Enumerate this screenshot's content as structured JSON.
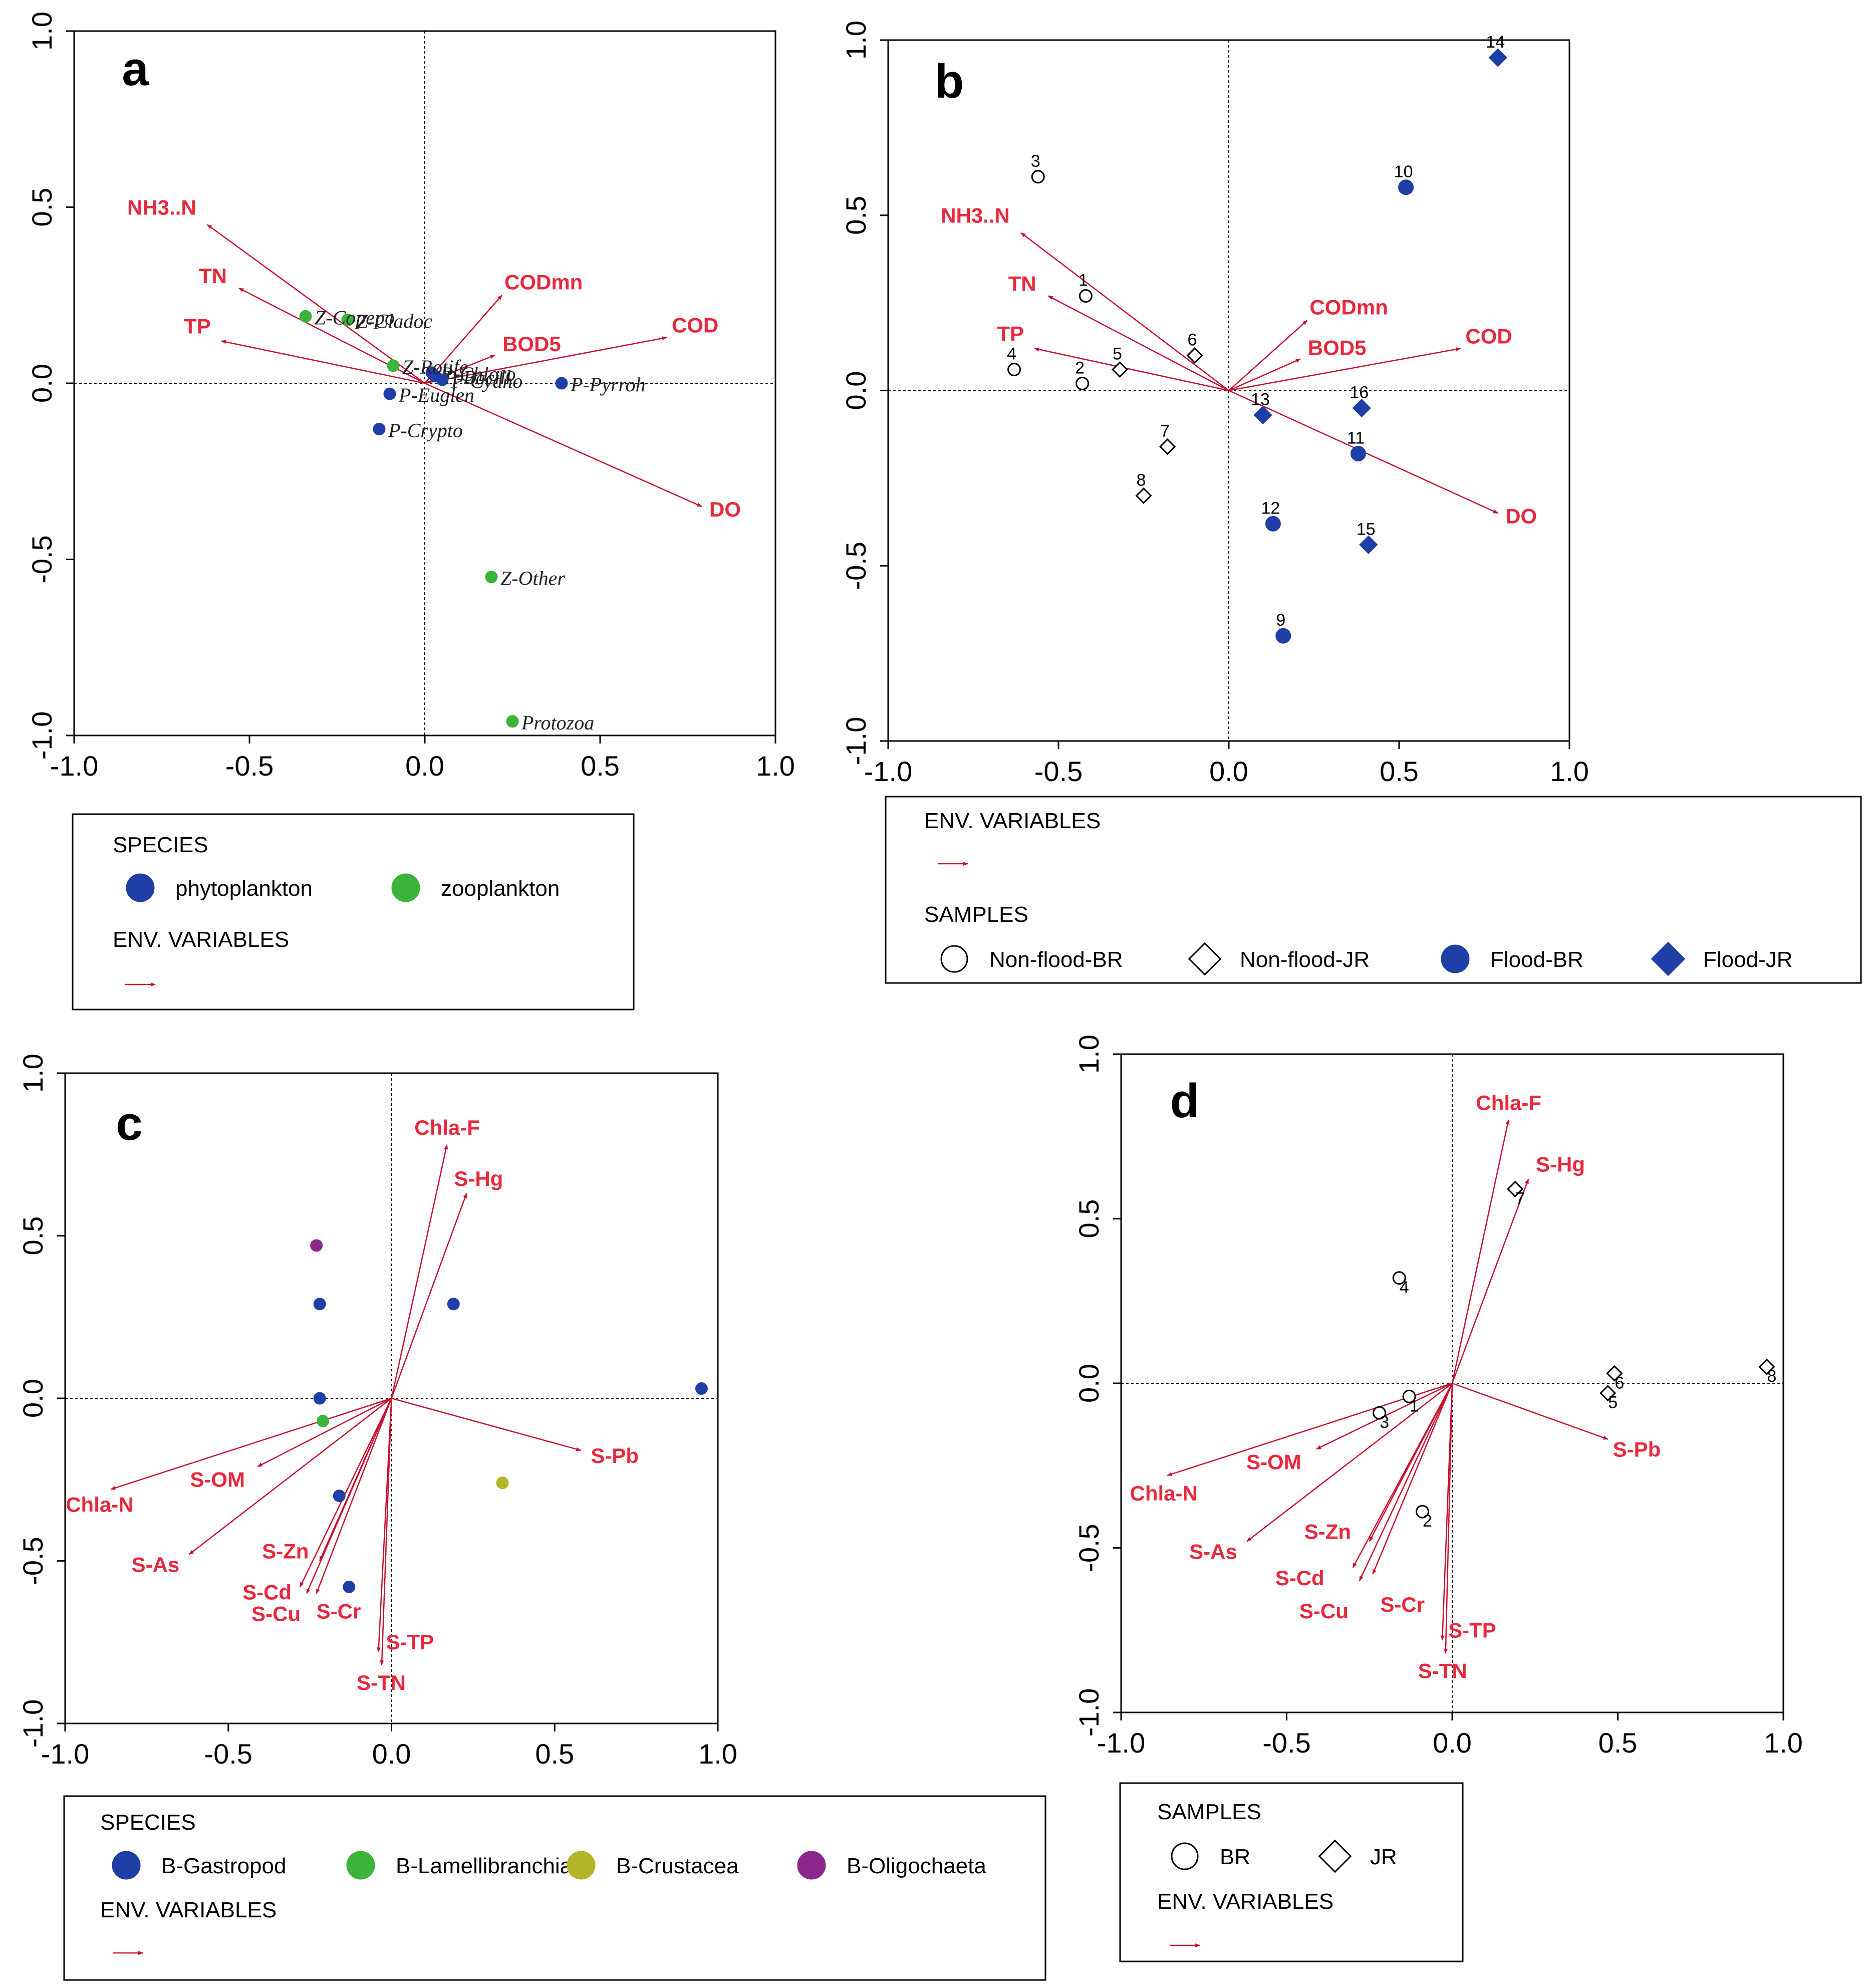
{
  "colors": {
    "arrow": "#c8102e",
    "envText": "#e8283c",
    "blue": "#1f3fa6",
    "green": "#3cb43c",
    "olive": "#b4b428",
    "purple": "#8c288c",
    "axis": "#000000"
  },
  "chart_data": [
    {
      "type": "scatter",
      "panel": "a",
      "xlim": [
        -1.0,
        1.0
      ],
      "ylim": [
        -1.0,
        1.0
      ],
      "xticks": [
        "-1.0",
        "-0.5",
        "0.0",
        "0.5",
        "1.0"
      ],
      "yticks": [
        "-1.0",
        "-0.5",
        "0.0",
        "0.5",
        "1.0"
      ],
      "env_variables": [
        {
          "name": "NH3..N",
          "x": -0.62,
          "y": 0.45
        },
        {
          "name": "TN",
          "x": -0.53,
          "y": 0.27
        },
        {
          "name": "TP",
          "x": -0.58,
          "y": 0.12
        },
        {
          "name": "CODmn",
          "x": 0.22,
          "y": 0.25
        },
        {
          "name": "BOD5",
          "x": 0.2,
          "y": 0.08
        },
        {
          "name": "COD",
          "x": 0.69,
          "y": 0.13
        },
        {
          "name": "DO",
          "x": 0.79,
          "y": -0.35
        }
      ],
      "series": [
        {
          "name": "phytoplankton",
          "color": "blue",
          "points": [
            {
              "label": "P-Chloro",
              "x": 0.02,
              "y": 0.03
            },
            {
              "label": "P-Bacill",
              "x": 0.03,
              "y": 0.02
            },
            {
              "label": "P-Cyano",
              "x": 0.05,
              "y": 0.01
            },
            {
              "label": "P-Euglen",
              "x": -0.1,
              "y": -0.03
            },
            {
              "label": "P-Pyrroh",
              "x": 0.39,
              "y": 0.0
            },
            {
              "label": "P-Crypto",
              "x": -0.13,
              "y": -0.13
            }
          ]
        },
        {
          "name": "zooplankton",
          "color": "green",
          "points": [
            {
              "label": "Z-Cladoc",
              "x": -0.22,
              "y": 0.18
            },
            {
              "label": "Z-Copepo",
              "x": -0.34,
              "y": 0.19
            },
            {
              "label": "Z-Rotife",
              "x": -0.09,
              "y": 0.05
            },
            {
              "label": "Z-Other",
              "x": 0.19,
              "y": -0.55
            },
            {
              "label": "Protozoa",
              "x": 0.25,
              "y": -0.96
            }
          ]
        }
      ],
      "legend": {
        "sections": [
          {
            "title": "SPECIES",
            "items": [
              {
                "label": "phytoplankton",
                "marker": "circle-filled",
                "color": "blue"
              },
              {
                "label": "zooplankton",
                "marker": "circle-filled",
                "color": "green"
              }
            ]
          },
          {
            "title": "ENV. VARIABLES",
            "items": [
              {
                "label": "",
                "marker": "arrow",
                "color": "arrow"
              }
            ]
          }
        ]
      }
    },
    {
      "type": "scatter",
      "panel": "b",
      "xlim": [
        -1.0,
        1.0
      ],
      "ylim": [
        -1.0,
        1.0
      ],
      "xticks": [
        "-1.0",
        "-0.5",
        "0.0",
        "0.5",
        "1.0"
      ],
      "yticks": [
        "-1.0",
        "-0.5",
        "0.0",
        "0.5",
        "1.0"
      ],
      "env_variables": [
        {
          "name": "NH3..N",
          "x": -0.61,
          "y": 0.45
        },
        {
          "name": "TN",
          "x": -0.53,
          "y": 0.27
        },
        {
          "name": "TP",
          "x": -0.57,
          "y": 0.12
        },
        {
          "name": "CODmn",
          "x": 0.23,
          "y": 0.2
        },
        {
          "name": "BOD5",
          "x": 0.21,
          "y": 0.09
        },
        {
          "name": "COD",
          "x": 0.68,
          "y": 0.12
        },
        {
          "name": "DO",
          "x": 0.79,
          "y": -0.35
        }
      ],
      "series": [
        {
          "name": "Non-flood-BR",
          "marker": "circle-open",
          "points": [
            {
              "label": "1",
              "x": -0.42,
              "y": 0.27
            },
            {
              "label": "2",
              "x": -0.43,
              "y": 0.02
            },
            {
              "label": "3",
              "x": -0.56,
              "y": 0.61
            },
            {
              "label": "4",
              "x": -0.63,
              "y": 0.06
            }
          ]
        },
        {
          "name": "Non-flood-JR",
          "marker": "diamond-open",
          "points": [
            {
              "label": "5",
              "x": -0.32,
              "y": 0.06
            },
            {
              "label": "6",
              "x": -0.1,
              "y": 0.1
            },
            {
              "label": "7",
              "x": -0.18,
              "y": -0.16
            },
            {
              "label": "8",
              "x": -0.25,
              "y": -0.3
            }
          ]
        },
        {
          "name": "Flood-BR",
          "marker": "circle-filled",
          "points": [
            {
              "label": "9",
              "x": 0.16,
              "y": -0.7
            },
            {
              "label": "10",
              "x": 0.52,
              "y": 0.58
            },
            {
              "label": "11",
              "x": 0.38,
              "y": -0.18
            },
            {
              "label": "12",
              "x": 0.13,
              "y": -0.38
            }
          ]
        },
        {
          "name": "Flood-JR",
          "marker": "diamond-filled",
          "points": [
            {
              "label": "13",
              "x": 0.1,
              "y": -0.07
            },
            {
              "label": "14",
              "x": 0.79,
              "y": 0.95
            },
            {
              "label": "15",
              "x": 0.41,
              "y": -0.44
            },
            {
              "label": "16",
              "x": 0.39,
              "y": -0.05
            }
          ]
        }
      ],
      "legend": {
        "sections": [
          {
            "title": "ENV. VARIABLES",
            "items": [
              {
                "label": "",
                "marker": "arrow",
                "color": "arrow"
              }
            ]
          },
          {
            "title": "SAMPLES",
            "items": [
              {
                "label": "Non-flood-BR",
                "marker": "circle-open"
              },
              {
                "label": "Non-flood-JR",
                "marker": "diamond-open"
              },
              {
                "label": "Flood-BR",
                "marker": "circle-filled",
                "color": "blue"
              },
              {
                "label": "Flood-JR",
                "marker": "diamond-filled",
                "color": "blue"
              }
            ]
          }
        ]
      }
    },
    {
      "type": "scatter",
      "panel": "c",
      "xlim": [
        -1.0,
        1.0
      ],
      "ylim": [
        -1.0,
        1.0
      ],
      "xticks": [
        "-1.0",
        "-0.5",
        "0.0",
        "0.5",
        "1.0"
      ],
      "yticks": [
        "-1.0",
        "-0.5",
        "0.0",
        "0.5",
        "1.0"
      ],
      "env_variables": [
        {
          "name": "Chla-F",
          "x": 0.17,
          "y": 0.78
        },
        {
          "name": "S-Hg",
          "x": 0.23,
          "y": 0.63
        },
        {
          "name": "S-Pb",
          "x": 0.58,
          "y": -0.16
        },
        {
          "name": "S-OM",
          "x": -0.41,
          "y": -0.21
        },
        {
          "name": "Chla-N",
          "x": -0.86,
          "y": -0.28
        },
        {
          "name": "S-As",
          "x": -0.62,
          "y": -0.48
        },
        {
          "name": "S-Zn",
          "x": -0.22,
          "y": -0.5
        },
        {
          "name": "S-Cd",
          "x": -0.28,
          "y": -0.58
        },
        {
          "name": "S-Cu",
          "x": -0.26,
          "y": -0.6
        },
        {
          "name": "S-Cr",
          "x": -0.23,
          "y": -0.6
        },
        {
          "name": "S-TP",
          "x": -0.04,
          "y": -0.78
        },
        {
          "name": "S-TN",
          "x": -0.03,
          "y": -0.82
        }
      ],
      "series": [
        {
          "name": "B-Gastropod",
          "color": "blue",
          "points": [
            {
              "x": -0.22,
              "y": 0.29
            },
            {
              "x": 0.19,
              "y": 0.29
            },
            {
              "x": -0.22,
              "y": 0.0
            },
            {
              "x": 0.95,
              "y": 0.03
            },
            {
              "x": -0.16,
              "y": -0.3
            },
            {
              "x": -0.13,
              "y": -0.58
            }
          ]
        },
        {
          "name": "B-Lamellibranchia",
          "color": "green",
          "points": [
            {
              "x": -0.21,
              "y": -0.07
            }
          ]
        },
        {
          "name": "B-Crustacea",
          "color": "olive",
          "points": [
            {
              "x": 0.34,
              "y": -0.26
            }
          ]
        },
        {
          "name": "B-Oligochaeta",
          "color": "purple",
          "points": [
            {
              "x": -0.23,
              "y": 0.47
            }
          ]
        }
      ],
      "legend": {
        "sections": [
          {
            "title": "SPECIES",
            "items": [
              {
                "label": "B-Gastropod",
                "marker": "circle-filled",
                "color": "blue"
              },
              {
                "label": "B-Lamellibranchia",
                "marker": "circle-filled",
                "color": "green"
              },
              {
                "label": "B-Crustacea",
                "marker": "circle-filled",
                "color": "olive"
              },
              {
                "label": "B-Oligochaeta",
                "marker": "circle-filled",
                "color": "purple"
              }
            ]
          },
          {
            "title": "ENV. VARIABLES",
            "items": [
              {
                "label": "",
                "marker": "arrow",
                "color": "arrow"
              }
            ]
          }
        ]
      }
    },
    {
      "type": "scatter",
      "panel": "d",
      "xlim": [
        -1.0,
        1.0
      ],
      "ylim": [
        -1.0,
        1.0
      ],
      "xticks": [
        "-1.0",
        "-0.5",
        "0.0",
        "0.5",
        "1.0"
      ],
      "yticks": [
        "-1.0",
        "-0.5",
        "0.0",
        "0.5",
        "1.0"
      ],
      "env_variables": [
        {
          "name": "Chla-F",
          "x": 0.17,
          "y": 0.8
        },
        {
          "name": "S-Hg",
          "x": 0.23,
          "y": 0.62
        },
        {
          "name": "S-Pb",
          "x": 0.47,
          "y": -0.17
        },
        {
          "name": "S-OM",
          "x": -0.41,
          "y": -0.2
        },
        {
          "name": "Chla-N",
          "x": -0.86,
          "y": -0.28
        },
        {
          "name": "S-As",
          "x": -0.62,
          "y": -0.48
        },
        {
          "name": "S-Zn",
          "x": -0.25,
          "y": -0.48
        },
        {
          "name": "S-Cd",
          "x": -0.3,
          "y": -0.56
        },
        {
          "name": "S-Cu",
          "x": -0.28,
          "y": -0.6
        },
        {
          "name": "S-Cr",
          "x": -0.24,
          "y": -0.58
        },
        {
          "name": "S-TP",
          "x": -0.03,
          "y": -0.78
        },
        {
          "name": "S-TN",
          "x": -0.02,
          "y": -0.82
        }
      ],
      "series": [
        {
          "name": "BR",
          "marker": "circle-open",
          "points": [
            {
              "label": "1",
              "x": -0.13,
              "y": -0.04
            },
            {
              "label": "2",
              "x": -0.09,
              "y": -0.39
            },
            {
              "label": "3",
              "x": -0.22,
              "y": -0.09
            },
            {
              "label": "4",
              "x": -0.16,
              "y": 0.32
            }
          ]
        },
        {
          "name": "JR",
          "marker": "diamond-open",
          "points": [
            {
              "label": "5",
              "x": 0.47,
              "y": -0.03
            },
            {
              "label": "6",
              "x": 0.49,
              "y": 0.03
            },
            {
              "label": "7",
              "x": 0.19,
              "y": 0.59
            },
            {
              "label": "8",
              "x": 0.95,
              "y": 0.05
            }
          ]
        }
      ],
      "legend": {
        "sections": [
          {
            "title": "SAMPLES",
            "items": [
              {
                "label": "BR",
                "marker": "circle-open"
              },
              {
                "label": "JR",
                "marker": "diamond-open"
              }
            ]
          },
          {
            "title": "ENV. VARIABLES",
            "items": [
              {
                "label": "",
                "marker": "arrow",
                "color": "arrow"
              }
            ]
          }
        ]
      }
    }
  ]
}
